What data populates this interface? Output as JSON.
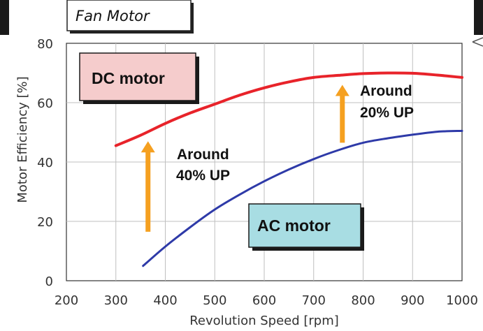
{
  "chart_data": {
    "type": "line",
    "title": "Fan Motor",
    "xlabel": "Revolution Speed [rpm]",
    "ylabel": "Motor Efficiency [%]",
    "xlim": [
      200,
      1000
    ],
    "ylim": [
      0,
      80
    ],
    "x_ticks": [
      "200",
      "300",
      "400",
      "500",
      "600",
      "700",
      "800",
      "900",
      "1000"
    ],
    "y_ticks": [
      "0",
      "20",
      "40",
      "60",
      "80"
    ],
    "grid": true,
    "series": [
      {
        "name": "DC motor",
        "color": "#e8232a",
        "x": [
          300,
          350,
          400,
          450,
          500,
          550,
          600,
          650,
          700,
          750,
          800,
          850,
          900,
          950,
          1000
        ],
        "y": [
          45.5,
          49,
          53,
          56.5,
          59.5,
          62.5,
          65,
          67,
          68.5,
          69.2,
          69.8,
          70.0,
          69.9,
          69.3,
          68.5
        ]
      },
      {
        "name": "AC motor",
        "color": "#2e3aa8",
        "x": [
          355,
          400,
          450,
          500,
          550,
          600,
          650,
          700,
          750,
          800,
          850,
          900,
          950,
          1000
        ],
        "y": [
          5,
          11.5,
          18,
          24,
          29,
          33.5,
          37.5,
          41,
          44,
          46.5,
          48,
          49.2,
          50.2,
          50.5
        ]
      }
    ],
    "labels": {
      "dc": "DC motor",
      "ac": "AC motor",
      "around_40_line1": "Around",
      "around_40_line2": "40% UP",
      "around_20_line1": "Around",
      "around_20_line2": "20% UP"
    },
    "arrow_color": "#f5a020",
    "arrows": [
      {
        "x": 365,
        "y_from": 16.5,
        "y_to": 47
      },
      {
        "x": 758,
        "y_from": 46.5,
        "y_to": 66
      }
    ],
    "colors": {
      "dc_box_fill": "#f5cccc",
      "ac_box_fill": "#a8dde3",
      "grid": "#bfbfbf",
      "axis": "#333333"
    }
  }
}
